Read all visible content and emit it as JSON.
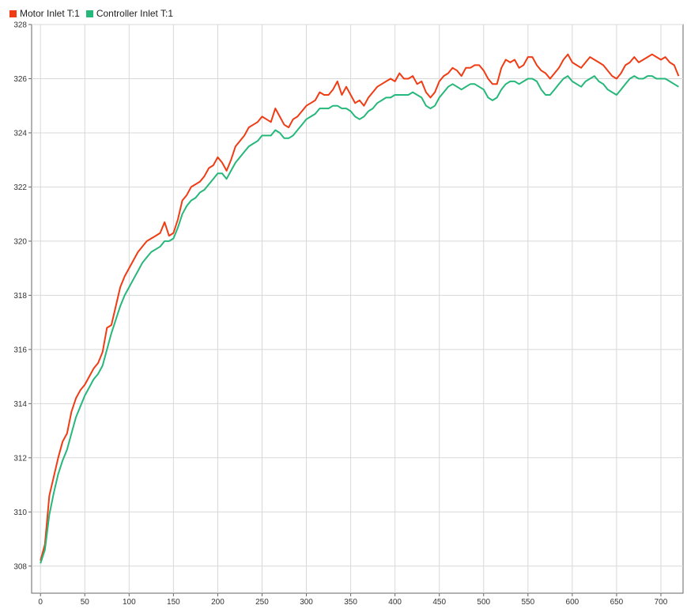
{
  "chart_data": {
    "type": "line",
    "title": "",
    "xlabel": "",
    "ylabel": "",
    "xlim": [
      -10,
      725
    ],
    "ylim": [
      307,
      328
    ],
    "x_ticks": [
      0,
      50,
      100,
      150,
      200,
      250,
      300,
      350,
      400,
      450,
      500,
      550,
      600,
      650,
      700
    ],
    "y_ticks": [
      308,
      310,
      312,
      314,
      316,
      318,
      320,
      322,
      324,
      326,
      328
    ],
    "grid": true,
    "legend_position": "top-left",
    "series": [
      {
        "name": "Motor Inlet T:1",
        "color": "#f03c14",
        "x": [
          0,
          5,
          10,
          15,
          20,
          25,
          30,
          35,
          40,
          45,
          50,
          55,
          60,
          65,
          70,
          75,
          80,
          85,
          90,
          95,
          100,
          105,
          110,
          115,
          120,
          125,
          130,
          135,
          140,
          145,
          150,
          155,
          160,
          165,
          170,
          175,
          180,
          185,
          190,
          195,
          200,
          205,
          210,
          215,
          220,
          225,
          230,
          235,
          240,
          245,
          250,
          255,
          260,
          265,
          270,
          275,
          280,
          285,
          290,
          295,
          300,
          305,
          310,
          315,
          320,
          325,
          330,
          335,
          340,
          345,
          350,
          355,
          360,
          365,
          370,
          375,
          380,
          385,
          390,
          395,
          400,
          405,
          410,
          415,
          420,
          425,
          430,
          435,
          440,
          445,
          450,
          455,
          460,
          465,
          470,
          475,
          480,
          485,
          490,
          495,
          500,
          505,
          510,
          515,
          520,
          525,
          530,
          535,
          540,
          545,
          550,
          555,
          560,
          565,
          570,
          575,
          580,
          585,
          590,
          595,
          600,
          605,
          610,
          615,
          620,
          625,
          630,
          635,
          640,
          645,
          650,
          655,
          660,
          665,
          670,
          675,
          680,
          685,
          690,
          695,
          700,
          705,
          710,
          715,
          720
        ],
        "values": [
          308.2,
          308.8,
          310.6,
          311.3,
          312.0,
          312.6,
          312.9,
          313.7,
          314.2,
          314.5,
          314.7,
          315.0,
          315.3,
          315.5,
          315.9,
          316.8,
          316.9,
          317.6,
          318.3,
          318.7,
          319.0,
          319.3,
          319.6,
          319.8,
          320.0,
          320.1,
          320.2,
          320.3,
          320.7,
          320.2,
          320.3,
          320.8,
          321.5,
          321.7,
          322.0,
          322.1,
          322.2,
          322.4,
          322.7,
          322.8,
          323.1,
          322.9,
          322.6,
          323.0,
          323.5,
          323.7,
          323.9,
          324.2,
          324.3,
          324.4,
          324.6,
          324.5,
          324.4,
          324.9,
          324.6,
          324.3,
          324.2,
          324.5,
          324.6,
          324.8,
          325.0,
          325.1,
          325.2,
          325.5,
          325.4,
          325.4,
          325.6,
          325.9,
          325.4,
          325.7,
          325.4,
          325.1,
          325.2,
          325.0,
          325.3,
          325.5,
          325.7,
          325.8,
          325.9,
          326.0,
          325.9,
          326.2,
          326.0,
          326.0,
          326.1,
          325.8,
          325.9,
          325.5,
          325.3,
          325.5,
          325.9,
          326.1,
          326.2,
          326.4,
          326.3,
          326.1,
          326.4,
          326.4,
          326.5,
          326.5,
          326.3,
          326.0,
          325.8,
          325.8,
          326.4,
          326.7,
          326.6,
          326.7,
          326.4,
          326.5,
          326.8,
          326.8,
          326.5,
          326.3,
          326.2,
          326.0,
          326.2,
          326.4,
          326.7,
          326.9,
          326.6,
          326.5,
          326.4,
          326.6,
          326.8,
          326.7,
          326.6,
          326.5,
          326.3,
          326.1,
          326.0,
          326.2,
          326.5,
          326.6,
          326.8,
          326.6,
          326.7,
          326.8,
          326.9,
          326.8,
          326.7,
          326.8,
          326.6,
          326.5,
          326.1
        ]
      },
      {
        "name": "Controller Inlet T:1",
        "color": "#26b77a",
        "x": [
          0,
          5,
          10,
          15,
          20,
          25,
          30,
          35,
          40,
          45,
          50,
          55,
          60,
          65,
          70,
          75,
          80,
          85,
          90,
          95,
          100,
          105,
          110,
          115,
          120,
          125,
          130,
          135,
          140,
          145,
          150,
          155,
          160,
          165,
          170,
          175,
          180,
          185,
          190,
          195,
          200,
          205,
          210,
          215,
          220,
          225,
          230,
          235,
          240,
          245,
          250,
          255,
          260,
          265,
          270,
          275,
          280,
          285,
          290,
          295,
          300,
          305,
          310,
          315,
          320,
          325,
          330,
          335,
          340,
          345,
          350,
          355,
          360,
          365,
          370,
          375,
          380,
          385,
          390,
          395,
          400,
          405,
          410,
          415,
          420,
          425,
          430,
          435,
          440,
          445,
          450,
          455,
          460,
          465,
          470,
          475,
          480,
          485,
          490,
          495,
          500,
          505,
          510,
          515,
          520,
          525,
          530,
          535,
          540,
          545,
          550,
          555,
          560,
          565,
          570,
          575,
          580,
          585,
          590,
          595,
          600,
          605,
          610,
          615,
          620,
          625,
          630,
          635,
          640,
          645,
          650,
          655,
          660,
          665,
          670,
          675,
          680,
          685,
          690,
          695,
          700,
          705,
          710,
          715,
          720
        ],
        "values": [
          308.1,
          308.6,
          309.9,
          310.7,
          311.4,
          311.9,
          312.3,
          312.9,
          313.5,
          313.9,
          314.3,
          314.6,
          314.9,
          315.1,
          315.4,
          316.0,
          316.6,
          317.1,
          317.6,
          318.0,
          318.3,
          318.6,
          318.9,
          319.2,
          319.4,
          319.6,
          319.7,
          319.8,
          320.0,
          320.0,
          320.1,
          320.5,
          321.0,
          321.3,
          321.5,
          321.6,
          321.8,
          321.9,
          322.1,
          322.3,
          322.5,
          322.5,
          322.3,
          322.6,
          322.9,
          323.1,
          323.3,
          323.5,
          323.6,
          323.7,
          323.9,
          323.9,
          323.9,
          324.1,
          324.0,
          323.8,
          323.8,
          323.9,
          324.1,
          324.3,
          324.5,
          324.6,
          324.7,
          324.9,
          324.9,
          324.9,
          325.0,
          325.0,
          324.9,
          324.9,
          324.8,
          324.6,
          324.5,
          324.6,
          324.8,
          324.9,
          325.1,
          325.2,
          325.3,
          325.3,
          325.4,
          325.4,
          325.4,
          325.4,
          325.5,
          325.4,
          325.3,
          325.0,
          324.9,
          325.0,
          325.3,
          325.5,
          325.7,
          325.8,
          325.7,
          325.6,
          325.7,
          325.8,
          325.8,
          325.7,
          325.6,
          325.3,
          325.2,
          325.3,
          325.6,
          325.8,
          325.9,
          325.9,
          325.8,
          325.9,
          326.0,
          326.0,
          325.9,
          325.6,
          325.4,
          325.4,
          325.6,
          325.8,
          326.0,
          326.1,
          325.9,
          325.8,
          325.7,
          325.9,
          326.0,
          326.1,
          325.9,
          325.8,
          325.6,
          325.5,
          325.4,
          325.6,
          325.8,
          326.0,
          326.1,
          326.0,
          326.0,
          326.1,
          326.1,
          326.0,
          326.0,
          326.0,
          325.9,
          325.8,
          325.7
        ]
      }
    ]
  }
}
